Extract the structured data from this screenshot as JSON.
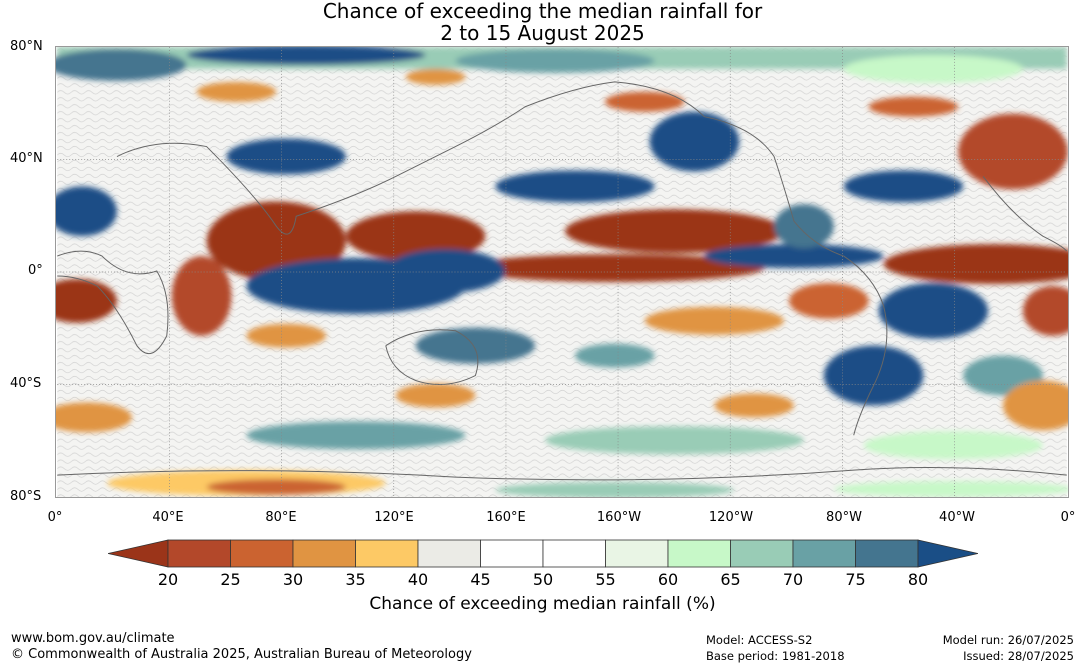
{
  "title": {
    "line1": "Chance of exceeding the median rainfall for",
    "line2": "2 to 15 August 2025"
  },
  "lat_labels": [
    "80°N",
    "40°N",
    "0°",
    "40°S",
    "80°S"
  ],
  "lon_labels": [
    "0°",
    "40°E",
    "80°E",
    "120°E",
    "160°E",
    "160°W",
    "120°W",
    "80°W",
    "40°W",
    "0°"
  ],
  "colorbar": {
    "ticks": [
      "20",
      "25",
      "30",
      "35",
      "40",
      "45",
      "50",
      "55",
      "60",
      "65",
      "70",
      "75",
      "80"
    ],
    "colors": [
      "#9b3419",
      "#b3482a",
      "#cb6330",
      "#e09442",
      "#fdc965",
      "#ebebe6",
      "#ffffff",
      "#ffffff",
      "#e9f5e5",
      "#c7f8c8",
      "#99ccb6",
      "#69a1a5",
      "#44758f",
      "#1a4e86"
    ],
    "label": "Chance of exceeding median rainfall (%)"
  },
  "footer": {
    "website": "www.bom.gov.au/climate",
    "copyright": "© Commonwealth of Australia 2025, Australian Bureau of Meteorology",
    "model": "Model: ACCESS-S2",
    "base_period": "Base period: 1981-2018",
    "model_run": "Model run: 26/07/2025",
    "issued": "Issued: 28/07/2025"
  }
}
